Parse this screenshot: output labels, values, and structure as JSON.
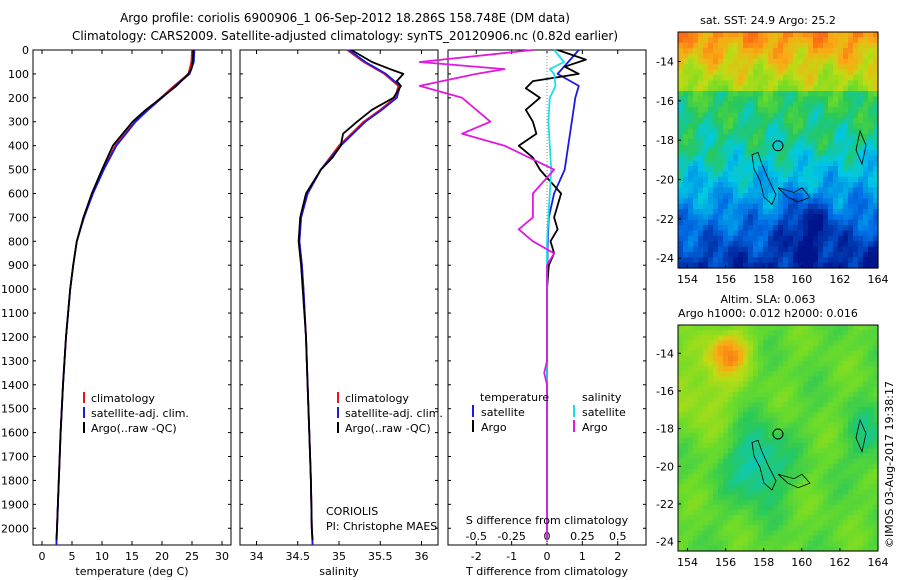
{
  "title": {
    "line1": "Argo profile: coriolis 6900906_1 06-Sep-2012 18.286S 158.748E (DM data)",
    "line2": "Climatology: CARS2009. Satellite-adjusted climatology: synTS_20120906.nc (0.82d earlier)"
  },
  "colors": {
    "climatology": "#e8131b",
    "satellite": "#1a1ae6",
    "argo": "#000000",
    "salinity_sat": "#18e0e8",
    "salinity_argo": "#e018e0"
  },
  "depth_ticks": [
    "0",
    "100",
    "200",
    "300",
    "400",
    "500",
    "600",
    "700",
    "800",
    "900",
    "1000",
    "1100",
    "1200",
    "1300",
    "1400",
    "1500",
    "1600",
    "1700",
    "1800",
    "1900",
    "2000"
  ],
  "legend_temp": [
    "climatology",
    "satellite-adj. clim.",
    "Argo(..raw -QC)"
  ],
  "legend_sal": [
    "climatology",
    "satellite-adj. clim.",
    "Argo(..raw -QC)"
  ],
  "institution": {
    "line1": "CORIOLIS",
    "line2": "PI: Christophe MAES"
  },
  "diff_legend": {
    "temp_head": "temperature",
    "sal_head": "salinity",
    "sat": "satellite",
    "argo": "Argo"
  },
  "maps": {
    "sst_title": "sat. SST: 24.9 Argo: 25.2",
    "sla_title1": "Altim. SLA: 0.063",
    "sla_title2": "Argo h1000: 0.012 h2000: 0.016",
    "lat_ticks": [
      "-14",
      "-16",
      "-18",
      "-20",
      "-22",
      "-24"
    ],
    "lon_ticks": [
      "154",
      "156",
      "158",
      "160",
      "162",
      "164"
    ]
  },
  "stamp": "©IMOS 03-Aug-2017 19:38:17",
  "chart_data": [
    {
      "type": "line",
      "xlabel": "temperature (deg C)",
      "ylabel": "",
      "xlim": [
        -1.5,
        31.5
      ],
      "ylim": [
        2070,
        0
      ],
      "xticks": [
        "0",
        "5",
        "10",
        "15",
        "20",
        "25",
        "30"
      ],
      "series": [
        {
          "name": "climatology",
          "depth": [
            0,
            50,
            100,
            150,
            200,
            250,
            300,
            400,
            500,
            600,
            700,
            800,
            900,
            1000,
            1200,
            1400,
            1600,
            1800,
            2000,
            2070
          ],
          "values": [
            25.0,
            24.9,
            24.4,
            22.0,
            19.8,
            17.5,
            15.5,
            12.2,
            10.2,
            8.4,
            7.0,
            5.8,
            5.2,
            4.7,
            4.0,
            3.5,
            3.1,
            2.8,
            2.5,
            2.4
          ]
        },
        {
          "name": "satellite-adj. clim.",
          "depth": [
            0,
            50,
            100,
            150,
            200,
            250,
            300,
            400,
            500,
            600,
            700,
            800,
            900,
            1000,
            1200,
            1400,
            1600,
            1800,
            2000,
            2070
          ],
          "values": [
            25.4,
            25.3,
            24.6,
            22.2,
            20.0,
            17.7,
            15.6,
            12.4,
            10.3,
            8.5,
            7.0,
            5.8,
            5.2,
            4.7,
            4.0,
            3.5,
            3.1,
            2.8,
            2.5,
            2.4
          ]
        },
        {
          "name": "Argo(..raw -QC)",
          "depth": [
            0,
            20,
            50,
            80,
            100,
            150,
            200,
            250,
            300,
            400,
            500,
            600,
            700,
            800,
            900,
            1000,
            1200,
            1400,
            1600,
            1800,
            2000,
            2050
          ],
          "values": [
            25.2,
            25.2,
            25.1,
            24.9,
            24.4,
            22.4,
            19.9,
            17.3,
            15.1,
            11.8,
            10.0,
            8.3,
            6.9,
            5.8,
            5.2,
            4.7,
            4.0,
            3.5,
            3.1,
            2.8,
            2.5,
            2.4
          ]
        }
      ]
    },
    {
      "type": "line",
      "xlabel": "salinity",
      "ylabel": "",
      "xlim": [
        33.8,
        36.2
      ],
      "ylim": [
        2070,
        0
      ],
      "xticks": [
        "34",
        "34.5",
        "35",
        "35.5",
        "36"
      ],
      "series": [
        {
          "name": "climatology",
          "depth": [
            0,
            50,
            100,
            150,
            200,
            250,
            300,
            400,
            500,
            600,
            700,
            800,
            900,
            1000,
            1200,
            1400,
            1600,
            1800,
            2000,
            2070
          ],
          "values": [
            35.1,
            35.3,
            35.55,
            35.72,
            35.68,
            35.5,
            35.3,
            35.0,
            34.78,
            34.62,
            34.54,
            34.52,
            34.55,
            34.57,
            34.6,
            34.62,
            34.64,
            34.66,
            34.67,
            34.68
          ]
        },
        {
          "name": "satellite-adj. clim.",
          "depth": [
            0,
            50,
            100,
            150,
            200,
            250,
            300,
            400,
            500,
            600,
            700,
            800,
            900,
            1000,
            1200,
            1400,
            1600,
            1800,
            2000,
            2070
          ],
          "values": [
            35.12,
            35.32,
            35.57,
            35.74,
            35.7,
            35.52,
            35.32,
            35.02,
            34.78,
            34.62,
            34.54,
            34.52,
            34.55,
            34.57,
            34.6,
            34.62,
            34.64,
            34.66,
            34.67,
            34.68
          ]
        },
        {
          "name": "Argo(..raw -QC)",
          "depth": [
            0,
            50,
            80,
            100,
            130,
            150,
            200,
            250,
            300,
            350,
            400,
            450,
            500,
            600,
            700,
            800,
            900,
            1000,
            1200,
            1400,
            1600,
            1800,
            2000,
            2050
          ],
          "values": [
            35.15,
            35.4,
            35.62,
            35.78,
            35.7,
            35.75,
            35.66,
            35.4,
            35.22,
            35.05,
            35.02,
            34.92,
            34.78,
            34.6,
            34.53,
            34.51,
            34.54,
            34.56,
            34.6,
            34.62,
            34.64,
            34.66,
            34.67,
            34.68
          ]
        }
      ]
    },
    {
      "type": "line",
      "xlabel": "T difference from climatology",
      "xlabel2": "S difference from climatology",
      "ylabel": "",
      "xlim": [
        -2.8,
        2.8
      ],
      "ylim": [
        2070,
        0
      ],
      "xticks_T": [
        "-2",
        "-1",
        "0",
        "1",
        "2"
      ],
      "xticks_S": [
        "-0.5",
        "-0.25",
        "0",
        "0.25",
        "0.5"
      ],
      "series": [
        {
          "name": "satellite",
          "kind": "temperature",
          "depth": [
            0,
            50,
            100,
            150,
            200,
            300,
            400,
            500,
            600,
            700,
            800,
            1000,
            1500,
            2000,
            2050
          ],
          "values": [
            0.9,
            0.6,
            0.3,
            0.9,
            0.8,
            0.7,
            0.6,
            0.5,
            0.2,
            0.05,
            0.02,
            0,
            0,
            0,
            0
          ]
        },
        {
          "name": "Argo",
          "kind": "temperature",
          "depth": [
            0,
            40,
            70,
            100,
            130,
            160,
            200,
            250,
            300,
            350,
            400,
            450,
            500,
            600,
            700,
            750,
            800,
            850,
            900,
            1000,
            1500,
            2000,
            2050
          ],
          "values": [
            0.3,
            1.1,
            0.5,
            0.9,
            -0.4,
            -0.6,
            -0.2,
            -0.6,
            -0.4,
            -0.3,
            -0.8,
            -0.4,
            -0.2,
            0.4,
            0.2,
            0.3,
            0.1,
            0.2,
            0.05,
            0,
            0,
            0,
            0
          ]
        },
        {
          "name": "satellite",
          "kind": "salinity",
          "depth": [
            0,
            50,
            80,
            100,
            150,
            200,
            300,
            400,
            500,
            600,
            700,
            800,
            1000,
            1500,
            2000,
            2050
          ],
          "values": [
            0.05,
            0.12,
            0.02,
            0.05,
            0.06,
            0.02,
            0.01,
            0.02,
            0.03,
            0.02,
            0.01,
            0,
            0,
            0,
            0,
            0
          ]
        },
        {
          "name": "Argo",
          "kind": "salinity",
          "depth": [
            0,
            50,
            80,
            100,
            150,
            200,
            250,
            300,
            350,
            400,
            500,
            600,
            700,
            750,
            800,
            850,
            900,
            1000,
            1300,
            1350,
            1400,
            2000,
            2050
          ],
          "values": [
            -0.1,
            -0.9,
            -0.3,
            -0.5,
            -0.9,
            -0.6,
            -0.5,
            -0.4,
            -0.6,
            -0.3,
            0.05,
            -0.1,
            -0.1,
            -0.2,
            -0.1,
            0.05,
            0,
            0,
            0,
            -0.02,
            0,
            0,
            0
          ]
        }
      ]
    },
    {
      "type": "heatmap",
      "title": "sat. SST: 24.9 Argo: 25.2",
      "xlim": [
        153.5,
        164
      ],
      "ylim": [
        -24.5,
        -12.5
      ]
    },
    {
      "type": "heatmap",
      "title": "Altim. SLA: 0.063",
      "subtitle": "Argo h1000: 0.012 h2000: 0.016",
      "xlim": [
        153.5,
        164
      ],
      "ylim": [
        -24.5,
        -12.5
      ]
    }
  ]
}
